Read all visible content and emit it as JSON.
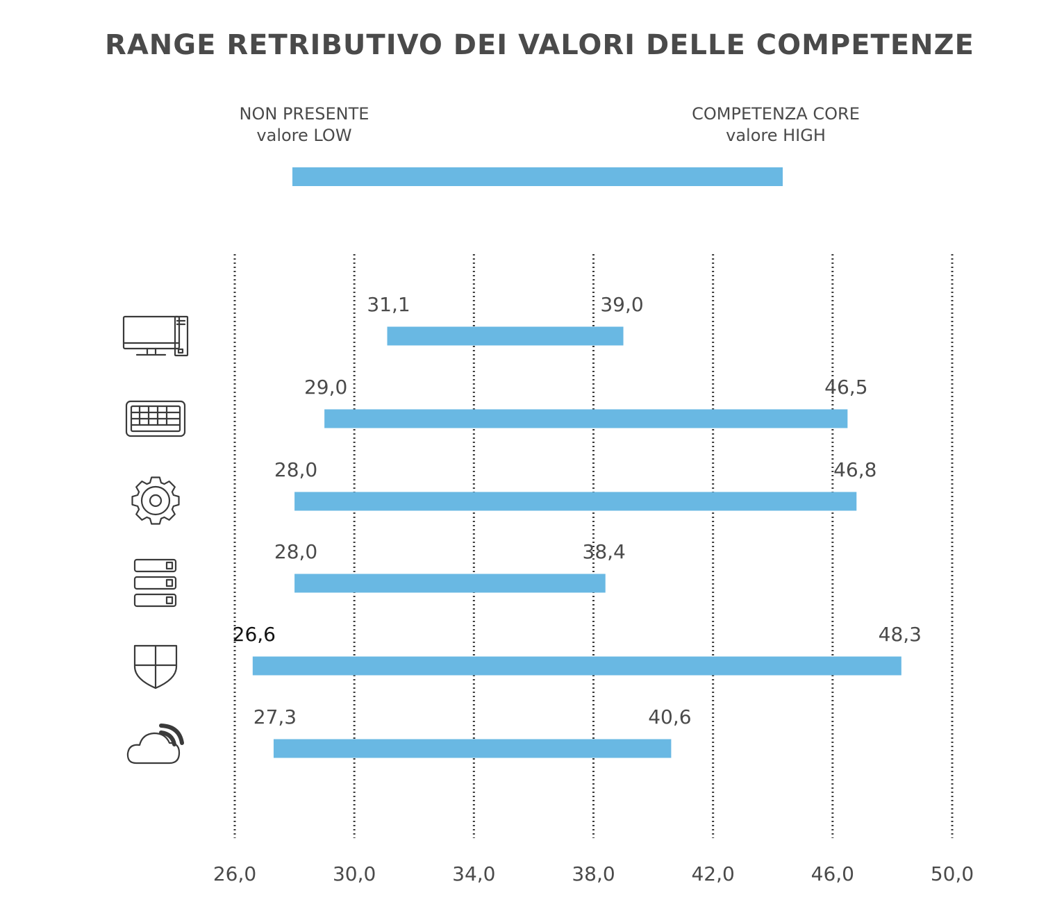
{
  "chart_data": {
    "type": "bar",
    "orientation": "horizontal-range",
    "title": "RANGE RETRIBUTIVO DEI VALORI DELLE COMPETENZE",
    "legend": {
      "low_label_line1": "NON PRESENTE",
      "low_label_line2": "valore LOW",
      "high_label_line1": "COMPETENZA CORE",
      "high_label_line2": "valore HIGH"
    },
    "xlim": [
      26.0,
      50.0
    ],
    "x_ticks": [
      "26,0",
      "30,0",
      "34,0",
      "38,0",
      "42,0",
      "46,0",
      "50,0"
    ],
    "x_tick_values": [
      26,
      30,
      34,
      38,
      42,
      46,
      50
    ],
    "grid": "vertical dotted",
    "bar_color": "#69b8e3",
    "series": [
      {
        "icon": "desktop-computer-icon",
        "low": 31.1,
        "high": 39.0,
        "low_label": "31,1",
        "high_label": "39,0"
      },
      {
        "icon": "keyboard-icon",
        "low": 29.0,
        "high": 46.5,
        "low_label": "29,0",
        "high_label": "46,5"
      },
      {
        "icon": "gear-icon",
        "low": 28.0,
        "high": 46.8,
        "low_label": "28,0",
        "high_label": "46,8"
      },
      {
        "icon": "server-icon",
        "low": 28.0,
        "high": 38.4,
        "low_label": "28,0",
        "high_label": "38,4"
      },
      {
        "icon": "shield-icon",
        "low": 26.6,
        "high": 48.3,
        "low_label": "26,6",
        "high_label": "48,3"
      },
      {
        "icon": "cloud-wifi-icon",
        "low": 27.3,
        "high": 40.6,
        "low_label": "27,3",
        "high_label": "40,6"
      }
    ]
  }
}
